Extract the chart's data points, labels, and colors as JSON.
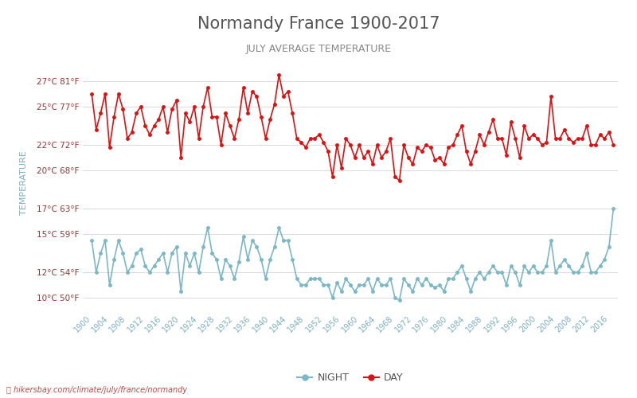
{
  "title": "Normandy France 1900-2017",
  "subtitle": "JULY AVERAGE TEMPERATURE",
  "xlabel_label": "TEMPERATURE",
  "years": [
    1900,
    1901,
    1902,
    1903,
    1904,
    1905,
    1906,
    1907,
    1908,
    1909,
    1910,
    1911,
    1912,
    1913,
    1914,
    1915,
    1916,
    1917,
    1918,
    1919,
    1920,
    1921,
    1922,
    1923,
    1924,
    1925,
    1926,
    1927,
    1928,
    1929,
    1930,
    1931,
    1932,
    1933,
    1934,
    1935,
    1936,
    1937,
    1938,
    1939,
    1940,
    1941,
    1942,
    1943,
    1944,
    1945,
    1946,
    1947,
    1948,
    1949,
    1950,
    1951,
    1952,
    1953,
    1954,
    1955,
    1956,
    1957,
    1958,
    1959,
    1960,
    1961,
    1962,
    1963,
    1964,
    1965,
    1966,
    1967,
    1968,
    1969,
    1970,
    1971,
    1972,
    1973,
    1974,
    1975,
    1976,
    1977,
    1978,
    1979,
    1980,
    1981,
    1982,
    1983,
    1984,
    1985,
    1986,
    1987,
    1988,
    1989,
    1990,
    1991,
    1992,
    1993,
    1994,
    1995,
    1996,
    1997,
    1998,
    1999,
    2000,
    2001,
    2002,
    2003,
    2004,
    2005,
    2006,
    2007,
    2008,
    2009,
    2010,
    2011,
    2012,
    2013,
    2014,
    2015,
    2016,
    2017
  ],
  "day_temps": [
    26.0,
    23.2,
    24.5,
    26.0,
    21.8,
    24.2,
    26.0,
    24.8,
    22.5,
    23.0,
    24.5,
    25.0,
    23.5,
    22.8,
    23.5,
    24.0,
    25.0,
    23.0,
    24.8,
    25.5,
    21.0,
    24.5,
    23.8,
    25.0,
    22.5,
    25.0,
    26.5,
    24.2,
    24.2,
    22.0,
    24.5,
    23.5,
    22.5,
    24.0,
    26.5,
    24.5,
    26.2,
    25.8,
    24.2,
    22.5,
    24.0,
    25.2,
    27.5,
    25.8,
    26.2,
    24.5,
    22.5,
    22.2,
    21.8,
    22.5,
    22.5,
    22.8,
    22.2,
    21.5,
    19.5,
    22.0,
    20.2,
    22.5,
    22.0,
    21.0,
    22.0,
    21.0,
    21.5,
    20.5,
    22.0,
    21.0,
    21.5,
    22.5,
    19.5,
    19.2,
    22.0,
    21.0,
    20.5,
    21.8,
    21.5,
    22.0,
    21.8,
    20.8,
    21.0,
    20.5,
    21.8,
    22.0,
    22.8,
    23.5,
    21.5,
    20.5,
    21.5,
    22.8,
    22.0,
    23.0,
    24.0,
    22.5,
    22.5,
    21.2,
    23.8,
    22.5,
    21.0,
    23.5,
    22.5,
    22.8,
    22.5,
    22.0,
    22.2,
    25.8,
    22.5,
    22.5,
    23.2,
    22.5,
    22.2,
    22.5,
    22.5,
    23.5,
    22.0,
    22.0,
    22.8,
    22.5,
    23.0,
    22.0
  ],
  "night_temps": [
    14.5,
    12.0,
    13.5,
    14.5,
    11.0,
    13.0,
    14.5,
    13.5,
    12.0,
    12.5,
    13.5,
    13.8,
    12.5,
    12.0,
    12.5,
    13.0,
    13.5,
    12.0,
    13.5,
    14.0,
    10.5,
    13.5,
    12.5,
    13.5,
    12.0,
    14.0,
    15.5,
    13.5,
    13.0,
    11.5,
    13.0,
    12.5,
    11.5,
    12.8,
    14.8,
    13.0,
    14.5,
    14.0,
    13.0,
    11.5,
    13.0,
    14.0,
    15.5,
    14.5,
    14.5,
    13.0,
    11.5,
    11.0,
    11.0,
    11.5,
    11.5,
    11.5,
    11.0,
    11.0,
    10.0,
    11.2,
    10.5,
    11.5,
    11.0,
    10.5,
    11.0,
    11.0,
    11.5,
    10.5,
    11.5,
    11.0,
    11.0,
    11.5,
    10.0,
    9.8,
    11.5,
    11.0,
    10.5,
    11.5,
    11.0,
    11.5,
    11.0,
    10.8,
    11.0,
    10.5,
    11.5,
    11.5,
    12.0,
    12.5,
    11.5,
    10.5,
    11.5,
    12.0,
    11.5,
    12.0,
    12.5,
    12.0,
    12.0,
    11.0,
    12.5,
    12.0,
    11.0,
    12.5,
    12.0,
    12.5,
    12.0,
    12.0,
    12.5,
    14.5,
    12.0,
    12.5,
    13.0,
    12.5,
    12.0,
    12.0,
    12.5,
    13.5,
    12.0,
    12.0,
    12.5,
    13.0,
    14.0,
    17.0
  ],
  "day_color": "#e01010",
  "night_color": "#7ab8c8",
  "title_color": "#555555",
  "subtitle_color": "#888888",
  "ylabel_color": "#7ab0c0",
  "tick_label_color": "#993333",
  "axis_tick_color": "#7ab0c0",
  "grid_color": "#dddddd",
  "background_color": "#ffffff",
  "yticks_c": [
    10,
    12,
    15,
    17,
    20,
    22,
    25,
    27
  ],
  "yticks_f": [
    50,
    54,
    59,
    63,
    68,
    72,
    77,
    81
  ],
  "ylim": [
    9.0,
    29.0
  ],
  "xtick_years": [
    1900,
    1904,
    1908,
    1912,
    1916,
    1920,
    1924,
    1928,
    1932,
    1936,
    1940,
    1944,
    1948,
    1952,
    1956,
    1960,
    1964,
    1968,
    1972,
    1976,
    1980,
    1984,
    1988,
    1992,
    1996,
    2000,
    2004,
    2008,
    2012,
    2016
  ],
  "footer_text": "hikersbay.com/climate/july/france/normandy",
  "legend_night_label": "NIGHT",
  "legend_day_label": "DAY"
}
